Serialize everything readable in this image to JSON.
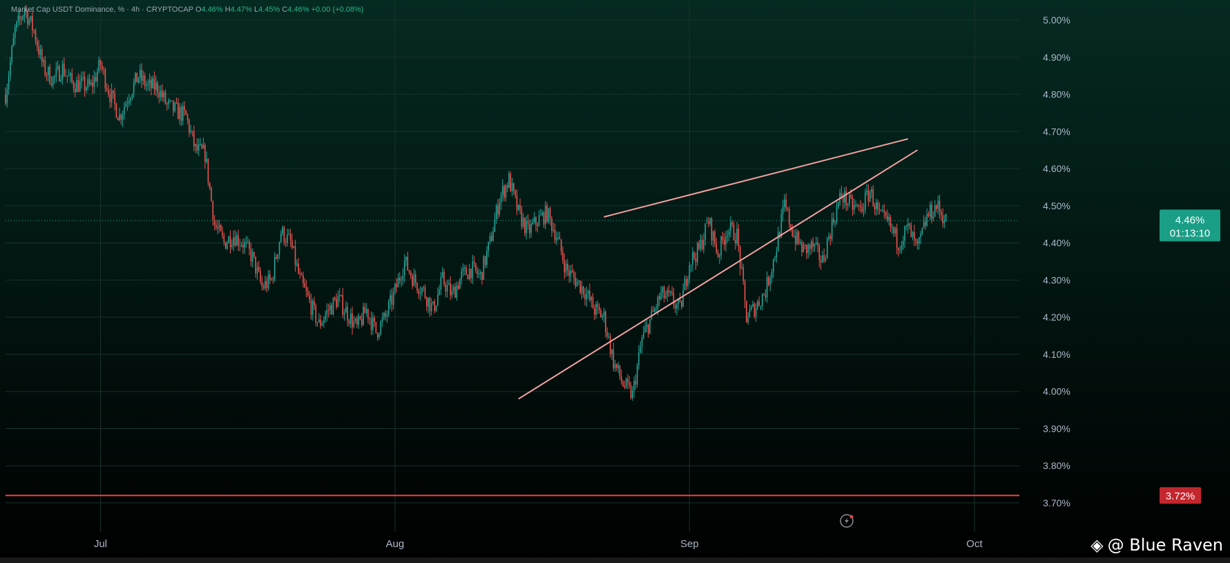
{
  "header": {
    "symbol_label": "Market Cap USDT Dominance, % · 4h · CRYPTOCAP",
    "open_key": "O",
    "open": "4.46%",
    "high_key": "H",
    "high": "4.47%",
    "low_key": "L",
    "low": "4.45%",
    "close_key": "C",
    "close": "4.46%",
    "change": "+0.00 (+0.08%)"
  },
  "price_badge": {
    "value": "4.46%",
    "countdown": "01:13:10",
    "color": "#1a9e86"
  },
  "support_badge": {
    "value": "3.72%",
    "color": "#c4262e"
  },
  "watermark": {
    "text": "@ Blue Raven",
    "logo_icon": "binance-diamond-icon"
  },
  "colors": {
    "up": "#26a69a",
    "down": "#ef5350",
    "trendline": "#f4a2a2",
    "support_line": "#ff3b3b",
    "axis_text": "#aab8c8",
    "background_top": "#052a22",
    "background_bottom": "#000000"
  },
  "chart_data": {
    "type": "candlestick",
    "y_axis": {
      "ticks": [
        "5.00%",
        "4.90%",
        "4.80%",
        "4.70%",
        "4.60%",
        "4.50%",
        "4.40%",
        "4.30%",
        "4.20%",
        "4.10%",
        "4.00%",
        "3.90%",
        "3.80%",
        "3.70%"
      ],
      "ylim": [
        3.7,
        5.02
      ]
    },
    "x_axis": {
      "ticks": [
        "Jul",
        "Aug",
        "Sep",
        "Oct"
      ],
      "range": [
        "2024-06-21",
        "2024-10-05"
      ]
    },
    "current_price": 4.46,
    "support_level": 3.72,
    "trendlines": [
      {
        "name": "",
        "points": [
          [
            "2024-08-14",
            3.98
          ],
          [
            "2024-09-25",
            4.65
          ]
        ]
      },
      {
        "name": "",
        "points": [
          [
            "2024-08-23",
            4.47
          ],
          [
            "2024-09-24",
            4.68
          ]
        ]
      }
    ],
    "price_path": [
      [
        "2024-06-21",
        4.8
      ],
      [
        "2024-06-22",
        4.97
      ],
      [
        "2024-06-23",
        5.03
      ],
      [
        "2024-06-24",
        4.97
      ],
      [
        "2024-06-25",
        4.87
      ],
      [
        "2024-06-26",
        4.84
      ],
      [
        "2024-06-27",
        4.87
      ],
      [
        "2024-06-28",
        4.83
      ],
      [
        "2024-06-30",
        4.82
      ],
      [
        "2024-07-01",
        4.88
      ],
      [
        "2024-07-02",
        4.8
      ],
      [
        "2024-07-03",
        4.74
      ],
      [
        "2024-07-04",
        4.8
      ],
      [
        "2024-07-05",
        4.85
      ],
      [
        "2024-07-06",
        4.82
      ],
      [
        "2024-07-07",
        4.82
      ],
      [
        "2024-07-08",
        4.77
      ],
      [
        "2024-07-10",
        4.74
      ],
      [
        "2024-07-11",
        4.65
      ],
      [
        "2024-07-12",
        4.64
      ],
      [
        "2024-07-13",
        4.45
      ],
      [
        "2024-07-14",
        4.4
      ],
      [
        "2024-07-15",
        4.42
      ],
      [
        "2024-07-16",
        4.4
      ],
      [
        "2024-07-17",
        4.36
      ],
      [
        "2024-07-18",
        4.28
      ],
      [
        "2024-07-19",
        4.3
      ],
      [
        "2024-07-20",
        4.43
      ],
      [
        "2024-07-21",
        4.4
      ],
      [
        "2024-07-22",
        4.3
      ],
      [
        "2024-07-23",
        4.24
      ],
      [
        "2024-07-24",
        4.18
      ],
      [
        "2024-07-25",
        4.22
      ],
      [
        "2024-07-26",
        4.25
      ],
      [
        "2024-07-27",
        4.21
      ],
      [
        "2024-07-28",
        4.17
      ],
      [
        "2024-07-29",
        4.22
      ],
      [
        "2024-07-30",
        4.16
      ],
      [
        "2024-07-31",
        4.2
      ],
      [
        "2024-08-01",
        4.27
      ],
      [
        "2024-08-02",
        4.35
      ],
      [
        "2024-08-03",
        4.3
      ],
      [
        "2024-08-04",
        4.27
      ],
      [
        "2024-08-05",
        4.22
      ],
      [
        "2024-08-06",
        4.3
      ],
      [
        "2024-08-07",
        4.26
      ],
      [
        "2024-08-08",
        4.31
      ],
      [
        "2024-08-09",
        4.33
      ],
      [
        "2024-08-10",
        4.31
      ],
      [
        "2024-08-11",
        4.4
      ],
      [
        "2024-08-12",
        4.52
      ],
      [
        "2024-08-13",
        4.57
      ],
      [
        "2024-08-14",
        4.48
      ],
      [
        "2024-08-15",
        4.43
      ],
      [
        "2024-08-16",
        4.46
      ],
      [
        "2024-08-17",
        4.48
      ],
      [
        "2024-08-18",
        4.42
      ],
      [
        "2024-08-19",
        4.33
      ],
      [
        "2024-08-20",
        4.3
      ],
      [
        "2024-08-21",
        4.27
      ],
      [
        "2024-08-22",
        4.22
      ],
      [
        "2024-08-23",
        4.2
      ],
      [
        "2024-08-24",
        4.08
      ],
      [
        "2024-08-25",
        4.02
      ],
      [
        "2024-08-26",
        3.99
      ],
      [
        "2024-08-27",
        4.14
      ],
      [
        "2024-08-28",
        4.2
      ],
      [
        "2024-08-29",
        4.26
      ],
      [
        "2024-08-30",
        4.25
      ],
      [
        "2024-08-31",
        4.22
      ],
      [
        "2024-09-01",
        4.35
      ],
      [
        "2024-09-02",
        4.38
      ],
      [
        "2024-09-03",
        4.46
      ],
      [
        "2024-09-04",
        4.37
      ],
      [
        "2024-09-05",
        4.44
      ],
      [
        "2024-09-06",
        4.42
      ],
      [
        "2024-09-07",
        4.2
      ],
      [
        "2024-09-08",
        4.23
      ],
      [
        "2024-09-09",
        4.27
      ],
      [
        "2024-09-10",
        4.37
      ],
      [
        "2024-09-11",
        4.5
      ],
      [
        "2024-09-12",
        4.42
      ],
      [
        "2024-09-13",
        4.38
      ],
      [
        "2024-09-14",
        4.39
      ],
      [
        "2024-09-15",
        4.35
      ],
      [
        "2024-09-16",
        4.45
      ],
      [
        "2024-09-17",
        4.53
      ],
      [
        "2024-09-18",
        4.5
      ],
      [
        "2024-09-19",
        4.49
      ],
      [
        "2024-09-20",
        4.54
      ],
      [
        "2024-09-21",
        4.47
      ],
      [
        "2024-09-22",
        4.45
      ],
      [
        "2024-09-23",
        4.4
      ],
      [
        "2024-09-24",
        4.44
      ],
      [
        "2024-09-25",
        4.38
      ],
      [
        "2024-09-26",
        4.47
      ],
      [
        "2024-09-27",
        4.5
      ],
      [
        "2024-09-28",
        4.46
      ]
    ]
  }
}
